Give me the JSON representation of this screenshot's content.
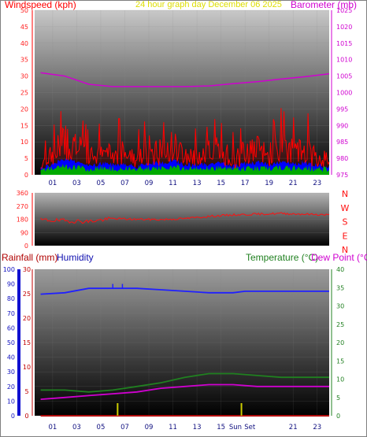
{
  "colors": {
    "wind": "#ff0000",
    "gust_band": "#0000ff",
    "avg_band": "#00aa00",
    "barometer": "#d000d0",
    "direction": "#ff1010",
    "humidity": "#2020ff",
    "temperature": "#208020",
    "dewpoint": "#d000d0",
    "rain": "#b00000",
    "sun": "#cccc00",
    "title": "#dddd00"
  },
  "header": {
    "windspeed_label": "Windspeed (kph)",
    "center_title": "24 hour graph day   December 06 2025",
    "barometer_label": "Barometer (mb)",
    "rainfall_label": "Rainfall (mm)",
    "humidity_label": "Humidity",
    "temperature_label": "Temperature (°C)",
    "dewpoint_label": "Dew Point (°C)"
  },
  "chart_data": [
    {
      "type": "line",
      "panel": "wind_barometer",
      "x_tick_labels": [
        "01",
        "03",
        "05",
        "07",
        "09",
        "11",
        "13",
        "15",
        "17",
        "19",
        "21",
        "23"
      ],
      "y_left": {
        "label": "Windspeed (kph)",
        "ticks": [
          "50",
          "45",
          "40",
          "35",
          "30",
          "25",
          "20",
          "15",
          "10",
          "5",
          "0"
        ],
        "range": [
          0,
          50
        ]
      },
      "y_right": {
        "label": "Barometer (mb)",
        "ticks": [
          "1025",
          "1020",
          "1015",
          "1010",
          "1005",
          "1000",
          "995",
          "990",
          "985",
          "980",
          "975"
        ],
        "range": [
          975,
          1025
        ]
      },
      "series": [
        {
          "name": "Barometer",
          "x": [
            0,
            2,
            4,
            6,
            8,
            10,
            12,
            14,
            16,
            18,
            20,
            22,
            24
          ],
          "values": [
            1006,
            1005,
            1002.5,
            1001.8,
            1001.8,
            1001.8,
            1001.8,
            1002,
            1002.7,
            1003.3,
            1004.1,
            1004.8,
            1005.7
          ]
        },
        {
          "name": "Windspeed",
          "x": [
            0,
            1,
            2,
            3,
            4,
            5,
            6,
            7,
            8,
            9,
            10,
            11,
            12,
            13,
            14,
            15,
            16,
            17,
            18,
            19,
            20,
            21,
            22,
            23,
            24
          ],
          "values": [
            5,
            8,
            14,
            11,
            7,
            9,
            8,
            9,
            6,
            10,
            9,
            12,
            8,
            7,
            9,
            10,
            6,
            9,
            10,
            8,
            11,
            9,
            10,
            7,
            6
          ]
        }
      ]
    },
    {
      "type": "line",
      "panel": "wind_direction",
      "y_left": {
        "ticks": [
          "360",
          "270",
          "180",
          "90",
          "0"
        ],
        "range": [
          0,
          360
        ]
      },
      "y_right_labels": [
        "N",
        "W",
        "S",
        "E",
        "N"
      ],
      "series": [
        {
          "name": "Direction",
          "x": [
            0,
            2,
            4,
            6,
            8,
            10,
            12,
            14,
            16,
            18,
            20,
            22,
            24
          ],
          "values": [
            175,
            170,
            165,
            185,
            180,
            178,
            185,
            200,
            210,
            215,
            220,
            215,
            210
          ]
        }
      ]
    },
    {
      "type": "line",
      "panel": "temp_hum_rain",
      "x_tick_labels": [
        "01",
        "03",
        "05",
        "07",
        "09",
        "11",
        "13",
        "15",
        "Sun",
        "Set",
        "21",
        "23"
      ],
      "y_rain": {
        "label": "Rainfall (mm)",
        "ticks": [
          "30",
          "25",
          "20",
          "15",
          "10",
          "5",
          "0"
        ],
        "range": [
          0,
          30
        ]
      },
      "y_hum": {
        "label": "Humidity",
        "ticks": [
          "100",
          "90",
          "80",
          "70",
          "60",
          "50",
          "40",
          "30",
          "20",
          "10",
          "0"
        ],
        "range": [
          0,
          100
        ]
      },
      "y_temp": {
        "label": "Temperature (°C)",
        "ticks": [
          "40",
          "35",
          "30",
          "25",
          "20",
          "15",
          "10",
          "5",
          "0"
        ],
        "range": [
          0,
          40
        ]
      },
      "sun_markers": [
        "07",
        "Sun"
      ],
      "series": [
        {
          "name": "Humidity",
          "x": [
            0,
            2,
            4,
            6,
            8,
            10,
            12,
            14,
            16,
            17,
            18,
            20,
            22,
            24
          ],
          "values": [
            83,
            84,
            87,
            87,
            87,
            86,
            85,
            84,
            84,
            85,
            85,
            85,
            85,
            85
          ]
        },
        {
          "name": "Temperature",
          "x": [
            0,
            2,
            4,
            6,
            8,
            10,
            12,
            14,
            16,
            18,
            20,
            22,
            24
          ],
          "values": [
            7,
            7,
            6.5,
            7,
            8,
            9,
            10.5,
            11.5,
            11.5,
            11,
            10.5,
            10.5,
            10.5
          ]
        },
        {
          "name": "Dew Point",
          "x": [
            0,
            2,
            4,
            6,
            8,
            10,
            12,
            14,
            16,
            18,
            20,
            22,
            24
          ],
          "values": [
            4.5,
            5,
            5.5,
            6,
            6.5,
            7.5,
            8,
            8.5,
            8.5,
            8,
            8,
            8,
            8
          ]
        },
        {
          "name": "Rainfall",
          "x": [
            0,
            24
          ],
          "values": [
            0,
            0
          ]
        }
      ]
    }
  ]
}
